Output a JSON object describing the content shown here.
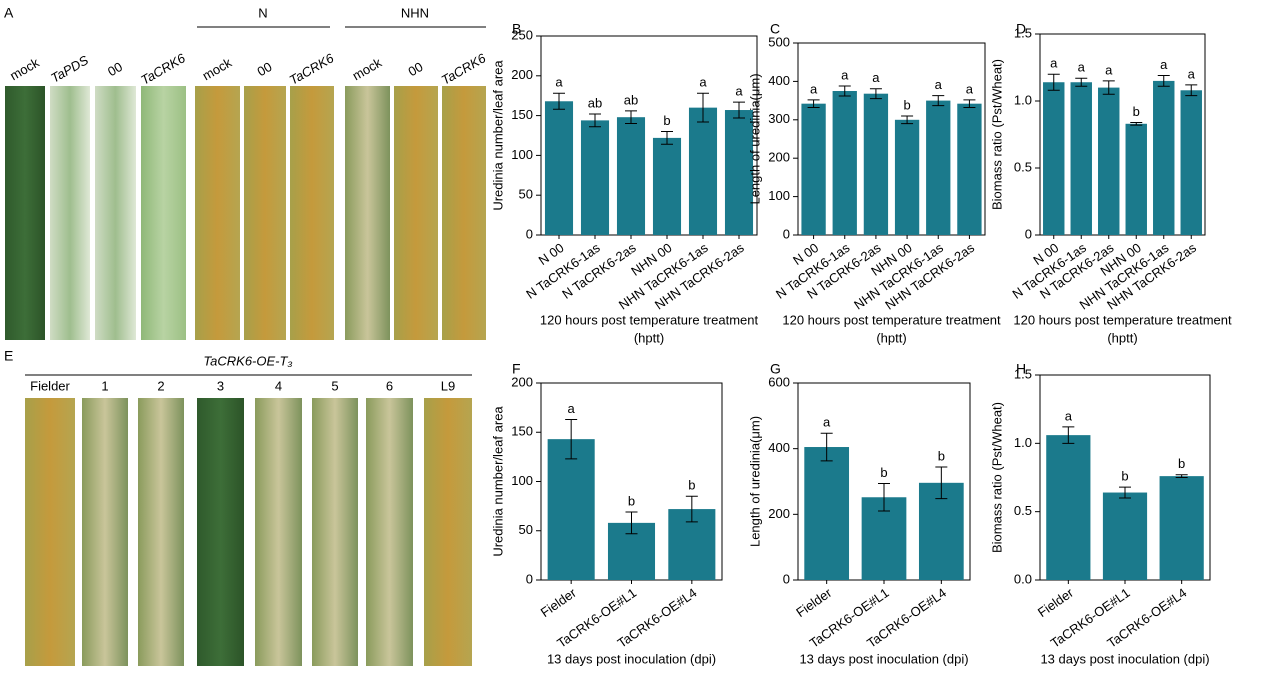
{
  "photos_top": {
    "panel": "A",
    "labels": [
      "mock",
      "TaPDS",
      "00",
      "TaCRK6",
      "mock",
      "00",
      "TaCRK6",
      "mock",
      "00",
      "TaCRK6"
    ],
    "groups": [
      "N",
      "NHN"
    ]
  },
  "photos_bottom": {
    "panel": "E",
    "title": "TaCRK6-OE-T₃",
    "labels": [
      "Fielder",
      "1",
      "2",
      "3",
      "4",
      "5",
      "6",
      "L9"
    ]
  },
  "chart_data": [
    {
      "type": "bar",
      "panel": "B",
      "ylabel": "Uredinia number/leaf area",
      "xlabel": [
        "120 hours post temperature treatment",
        "(hptt)"
      ],
      "categories": [
        "N 00",
        "N TaCRK6-1as",
        "N TaCRK6-2as",
        "NHN 00",
        "NHN TaCRK6-1as",
        "NHN TaCRK6-2as"
      ],
      "values": [
        168,
        144,
        148,
        122,
        160,
        157
      ],
      "errors": [
        10,
        8,
        8,
        8,
        18,
        10
      ],
      "letters": [
        "a",
        "ab",
        "ab",
        "b",
        "a",
        "a"
      ],
      "color": "#1b7a8c",
      "ylim": [
        0,
        250
      ],
      "yticks": [
        0,
        50,
        100,
        150,
        200,
        250
      ]
    },
    {
      "type": "bar",
      "panel": "C",
      "ylabel": "Length of uredinia(μm)",
      "xlabel": [
        "120 hours post temperature treatment",
        "(hptt)"
      ],
      "categories": [
        "N 00",
        "N TaCRK6-1as",
        "N TaCRK6-2as",
        "NHN 00",
        "NHN TaCRK6-1as",
        "NHN TaCRK6-2as"
      ],
      "values": [
        342,
        375,
        368,
        300,
        350,
        342
      ],
      "errors": [
        10,
        13,
        13,
        10,
        13,
        10
      ],
      "letters": [
        "a",
        "a",
        "a",
        "b",
        "a",
        "a"
      ],
      "color": "#1b7a8c",
      "ylim": [
        0,
        500
      ],
      "yticks": [
        0,
        100,
        200,
        300,
        400,
        500
      ]
    },
    {
      "type": "bar",
      "panel": "D",
      "ylabel": "Biomass ratio (Pst/Wheat)",
      "xlabel": [
        "120 hours post temperature treatment",
        "(hptt)"
      ],
      "categories": [
        "N 00",
        "N TaCRK6-1as",
        "N TaCRK6-2as",
        "NHN 00",
        "NHN TaCRK6-1as",
        "NHN TaCRK6-2as"
      ],
      "values": [
        1.14,
        1.14,
        1.1,
        0.83,
        1.15,
        1.08
      ],
      "errors": [
        0.06,
        0.03,
        0.05,
        0.01,
        0.04,
        0.04
      ],
      "letters": [
        "a",
        "a",
        "a",
        "b",
        "a",
        "a"
      ],
      "color": "#1b7a8c",
      "ylim": [
        0,
        1.5
      ],
      "yticks": [
        0,
        0.5,
        {
          "value": 1,
          "label": "1.0"
        },
        1.5
      ]
    },
    {
      "type": "bar",
      "panel": "F",
      "ylabel": "Uredinia number/leaf area",
      "xlabel": [
        "13 days post inoculation (dpi)"
      ],
      "categories": [
        "Fielder",
        "TaCRK6-OE#L1",
        "TaCRK6-OE#L4"
      ],
      "values": [
        143,
        58,
        72
      ],
      "errors": [
        20,
        11,
        13
      ],
      "letters": [
        "a",
        "b",
        "b"
      ],
      "color": "#1b7a8c",
      "ylim": [
        0,
        200
      ],
      "yticks": [
        0,
        50,
        100,
        150,
        200
      ]
    },
    {
      "type": "bar",
      "panel": "G",
      "ylabel": "Length of uredinia(μm)",
      "xlabel": [
        "13 days post inoculation (dpi)"
      ],
      "categories": [
        "Fielder",
        "TaCRK6-OE#L1",
        "TaCRK6-OE#L4"
      ],
      "values": [
        405,
        252,
        296
      ],
      "errors": [
        42,
        42,
        48
      ],
      "letters": [
        "a",
        "b",
        "b"
      ],
      "color": "#1b7a8c",
      "ylim": [
        0,
        600
      ],
      "yticks": [
        0,
        200,
        400,
        600
      ]
    },
    {
      "type": "bar",
      "panel": "H",
      "ylabel": "Biomass ratio (Pst/Wheat)",
      "xlabel": [
        "13 days post inoculation (dpi)"
      ],
      "categories": [
        "Fielder",
        "TaCRK6-OE#L1",
        "TaCRK6-OE#L4"
      ],
      "values": [
        1.06,
        0.64,
        0.76
      ],
      "errors": [
        0.06,
        0.04,
        0.01
      ],
      "letters": [
        "a",
        "b",
        "b"
      ],
      "color": "#1b7a8c",
      "ylim": [
        0,
        1.5
      ],
      "yticks": [
        {
          "value": 0,
          "label": "0.0"
        },
        0.5,
        {
          "value": 1,
          "label": "1.0"
        },
        1.5
      ]
    }
  ]
}
